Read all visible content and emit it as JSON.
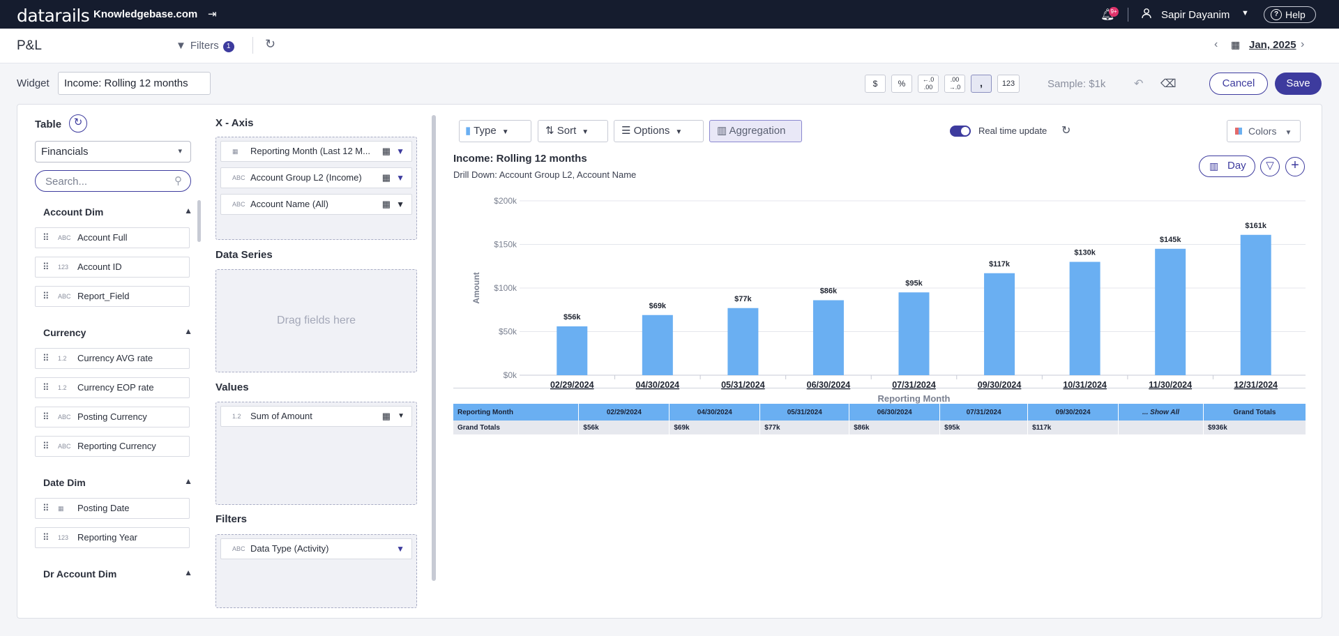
{
  "topbar": {
    "logo": "datarails",
    "site": "Knowledgebase.com",
    "exit_icon": "exit-icon",
    "notif_badge": "9+",
    "user_name": "Sapir Dayanim",
    "help_label": "Help",
    "help_glyph": "?"
  },
  "header": {
    "title": "P&L",
    "filters_label": "Filters",
    "filters_count": "1",
    "date_label": "Jan, 2025"
  },
  "widget": {
    "label": "Widget",
    "name": "Income: Rolling 12 months",
    "format_buttons": [
      "$",
      "%",
      "←.0 .00",
      ".00 →.0",
      ",",
      "123"
    ],
    "sample": "Sample: $1k",
    "cancel": "Cancel",
    "save": "Save"
  },
  "left": {
    "table_label": "Table",
    "table_value": "Financials",
    "search_placeholder": "Search...",
    "groups": [
      {
        "name": "Account Dim",
        "fields": [
          {
            "label": "Account Full",
            "type": "ABC"
          },
          {
            "label": "Account ID",
            "type": "123"
          },
          {
            "label": "Report_Field",
            "type": "ABC"
          }
        ]
      },
      {
        "name": "Currency",
        "fields": [
          {
            "label": "Currency AVG rate",
            "type": "1.2"
          },
          {
            "label": "Currency EOP rate",
            "type": "1.2"
          },
          {
            "label": "Posting Currency",
            "type": "ABC"
          },
          {
            "label": "Reporting Currency",
            "type": "ABC"
          }
        ]
      },
      {
        "name": "Date Dim",
        "fields": [
          {
            "label": "Posting Date",
            "type": "date"
          },
          {
            "label": "Reporting Year",
            "type": "123"
          }
        ]
      },
      {
        "name": "Dr Account Dim",
        "fields": []
      }
    ]
  },
  "middle": {
    "xaxis_title": "X - Axis",
    "xaxis_fields": [
      "Reporting Month (Last 12 M...",
      "Account Group L2 (Income)",
      "Account Name (All)"
    ],
    "series_title": "Data Series",
    "drag_hint": "Drag fields here",
    "values_title": "Values",
    "values_field": "Sum of Amount",
    "filters_title": "Filters",
    "filters_field": "Data Type (Activity)"
  },
  "toolbar": {
    "type": "Type",
    "sort": "Sort",
    "options": "Options",
    "aggregation": "Aggregation",
    "realtime": "Real time update",
    "colors": "Colors",
    "day": "Day"
  },
  "chart_data": {
    "type": "bar",
    "title": "Income: Rolling 12 months",
    "subtitle": "Drill Down: Account Group L2, Account Name",
    "xlabel": "Reporting Month",
    "ylabel": "Amount",
    "ylim": [
      0,
      200000
    ],
    "yticks": [
      "$0k",
      "$50k",
      "$100k",
      "$150k",
      "$200k"
    ],
    "categories": [
      "02/29/2024",
      "04/30/2024",
      "05/31/2024",
      "06/30/2024",
      "07/31/2024",
      "09/30/2024",
      "10/31/2024",
      "11/30/2024",
      "12/31/2024"
    ],
    "values": [
      56000,
      69000,
      77000,
      86000,
      95000,
      117000,
      130000,
      145000,
      161000
    ],
    "data_labels": [
      "$56k",
      "$69k",
      "$77k",
      "$86k",
      "$95k",
      "$117k",
      "$130k",
      "$145k",
      "$161k"
    ],
    "bar_color": "#6aaff2",
    "grid": true
  },
  "table": {
    "headers": [
      "Reporting Month",
      "02/29/2024",
      "04/30/2024",
      "05/31/2024",
      "06/30/2024",
      "07/31/2024",
      "09/30/2024",
      "... Show All",
      "Grand Totals"
    ],
    "row": [
      "Grand Totals",
      "$56k",
      "$69k",
      "$77k",
      "$86k",
      "$95k",
      "$117k",
      "",
      "$936k"
    ]
  },
  "colors": {
    "accent": "#3d3b9e",
    "topbar": "#151c2e",
    "bar": "#6aaff2"
  }
}
